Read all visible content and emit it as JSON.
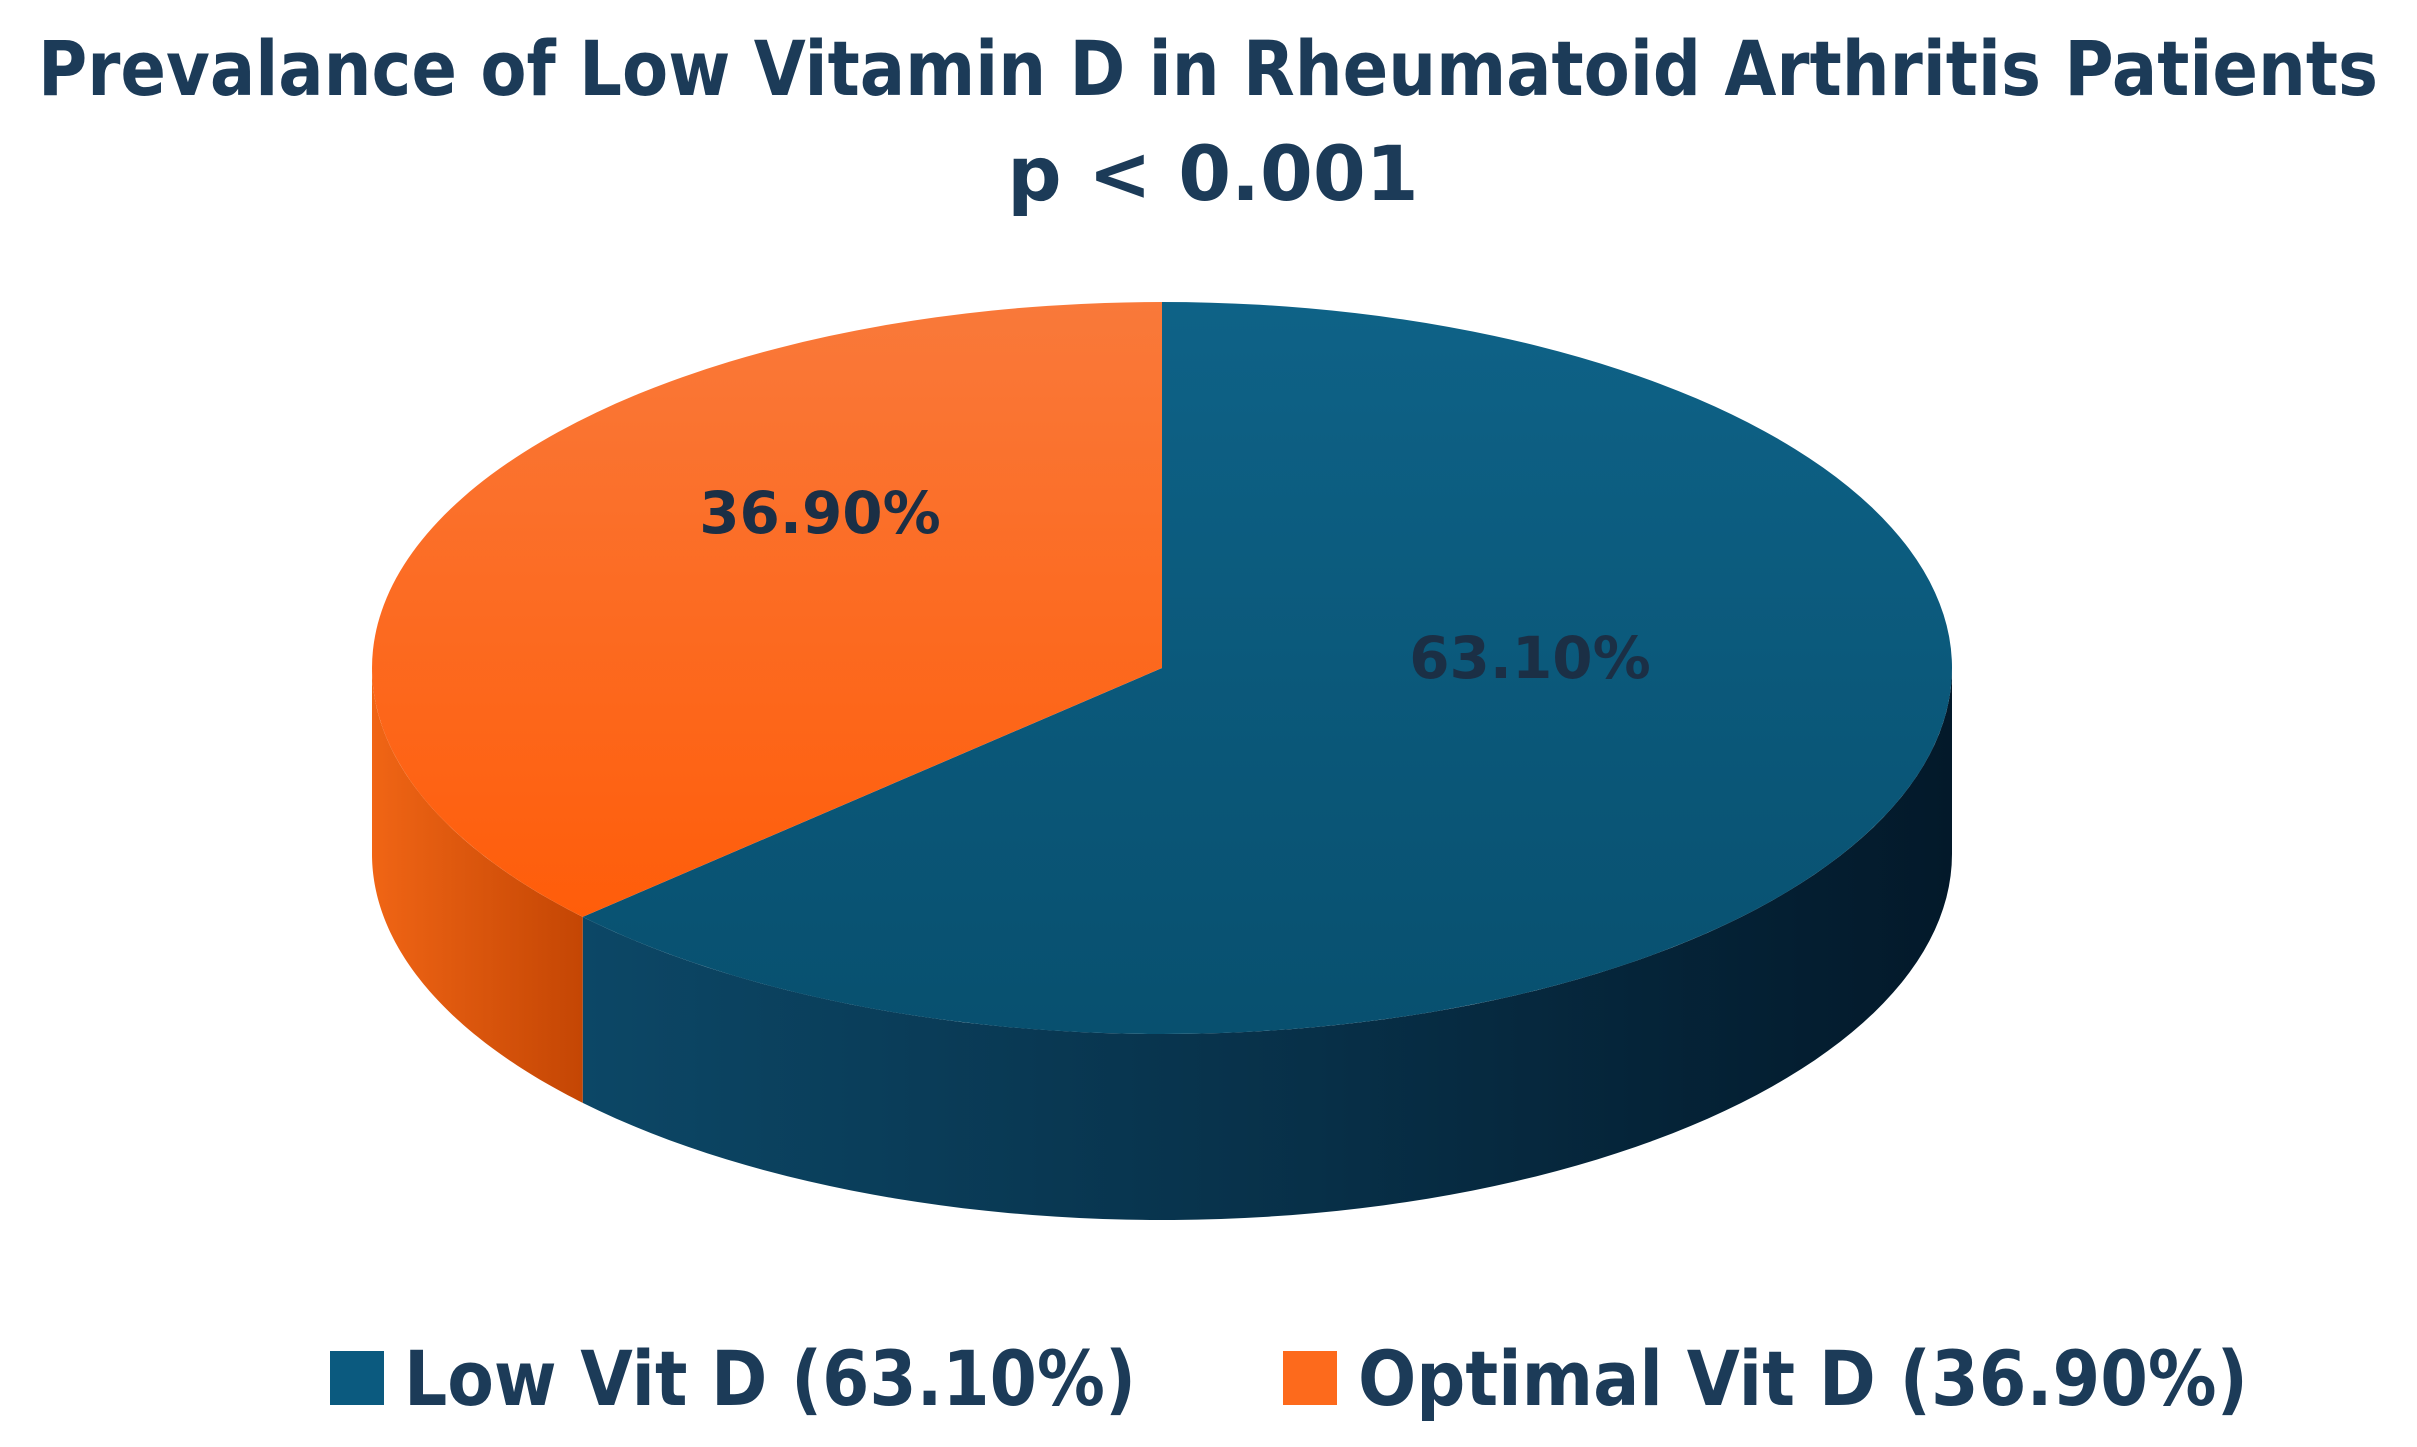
{
  "chart_data": {
    "type": "pie",
    "style": "3d",
    "title": "Prevalance of Low Vitamin D in Rheumatoid Arthritis Patients",
    "subtitle": "p < 0.001",
    "slices": [
      {
        "name": "Low Vit D",
        "value": 63.1,
        "data_label": "63.10%",
        "legend_label": "Low Vit D (63.10%)",
        "color": "#0b5a7f"
      },
      {
        "name": "Optimal Vit D",
        "value": 36.9,
        "data_label": "36.90%",
        "legend_label": "Optimal Vit D (36.90%)",
        "color": "#fd6a1c"
      }
    ],
    "legend_position": "bottom"
  }
}
